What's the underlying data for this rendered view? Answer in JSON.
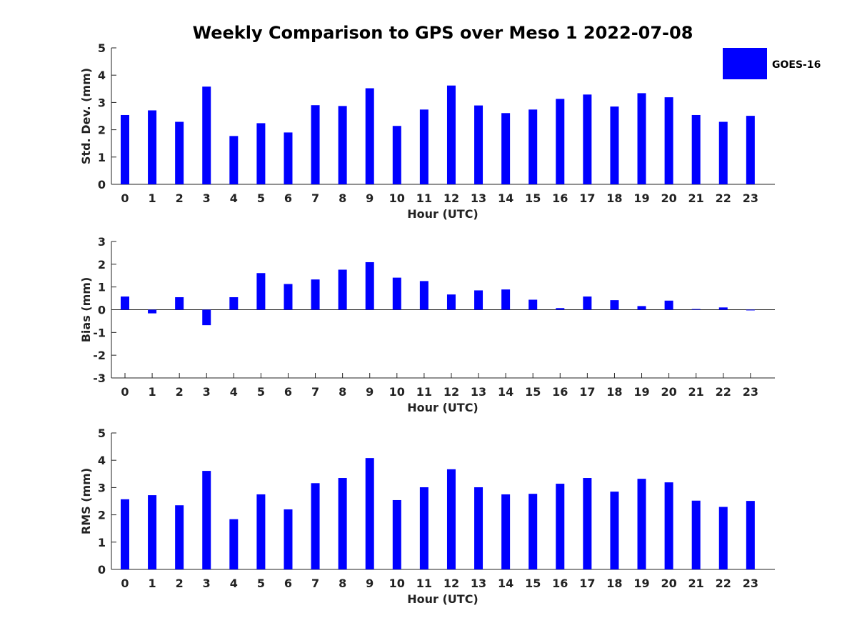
{
  "title": "Weekly Comparison to GPS over Meso 1 2022-07-08",
  "legend": {
    "label": "GOES-16",
    "placement": "top-right"
  },
  "colors": {
    "bar": "#0000ff",
    "axis": "#222222"
  },
  "chart_data": [
    {
      "type": "bar",
      "name": "std-dev",
      "xlabel": "Hour (UTC)",
      "ylabel": "Std. Dev. (mm)",
      "ylim": [
        0,
        5
      ],
      "yticks": [
        "0",
        "1",
        "2",
        "3",
        "4",
        "5"
      ],
      "categories": [
        "0",
        "1",
        "2",
        "3",
        "4",
        "5",
        "6",
        "7",
        "8",
        "9",
        "10",
        "11",
        "12",
        "13",
        "14",
        "15",
        "16",
        "17",
        "18",
        "19",
        "20",
        "21",
        "22",
        "23"
      ],
      "series": [
        {
          "name": "GOES-16",
          "values": [
            2.54,
            2.71,
            2.29,
            3.58,
            1.77,
            2.24,
            1.9,
            2.9,
            2.87,
            3.52,
            2.14,
            2.74,
            3.62,
            2.89,
            2.61,
            2.74,
            3.13,
            3.29,
            2.85,
            3.34,
            3.19,
            2.54,
            2.29,
            2.51
          ]
        }
      ]
    },
    {
      "type": "bar",
      "name": "bias",
      "xlabel": "Hour (UTC)",
      "ylabel": "Bias (mm)",
      "ylim": [
        -3,
        3
      ],
      "yticks": [
        "-3",
        "-2",
        "-1",
        "0",
        "1",
        "2",
        "3"
      ],
      "categories": [
        "0",
        "1",
        "2",
        "3",
        "4",
        "5",
        "6",
        "7",
        "8",
        "9",
        "10",
        "11",
        "12",
        "13",
        "14",
        "15",
        "16",
        "17",
        "18",
        "19",
        "20",
        "21",
        "22",
        "23"
      ],
      "series": [
        {
          "name": "GOES-16",
          "values": [
            0.58,
            -0.16,
            0.55,
            -0.68,
            0.55,
            1.61,
            1.13,
            1.33,
            1.76,
            2.09,
            1.41,
            1.26,
            0.67,
            0.85,
            0.89,
            0.44,
            0.07,
            0.58,
            0.42,
            0.16,
            0.4,
            0.03,
            0.1,
            -0.03
          ]
        }
      ]
    },
    {
      "type": "bar",
      "name": "rms",
      "xlabel": "Hour (UTC)",
      "ylabel": "RMS (mm)",
      "ylim": [
        0,
        5
      ],
      "yticks": [
        "0",
        "1",
        "2",
        "3",
        "4",
        "5"
      ],
      "categories": [
        "0",
        "1",
        "2",
        "3",
        "4",
        "5",
        "6",
        "7",
        "8",
        "9",
        "10",
        "11",
        "12",
        "13",
        "14",
        "15",
        "16",
        "17",
        "18",
        "19",
        "20",
        "21",
        "22",
        "23"
      ],
      "series": [
        {
          "name": "GOES-16",
          "values": [
            2.57,
            2.72,
            2.35,
            3.61,
            1.84,
            2.75,
            2.2,
            3.16,
            3.35,
            4.08,
            2.54,
            3.01,
            3.67,
            3.01,
            2.75,
            2.77,
            3.14,
            3.35,
            2.85,
            3.32,
            3.19,
            2.52,
            2.29,
            2.51
          ]
        }
      ]
    }
  ]
}
